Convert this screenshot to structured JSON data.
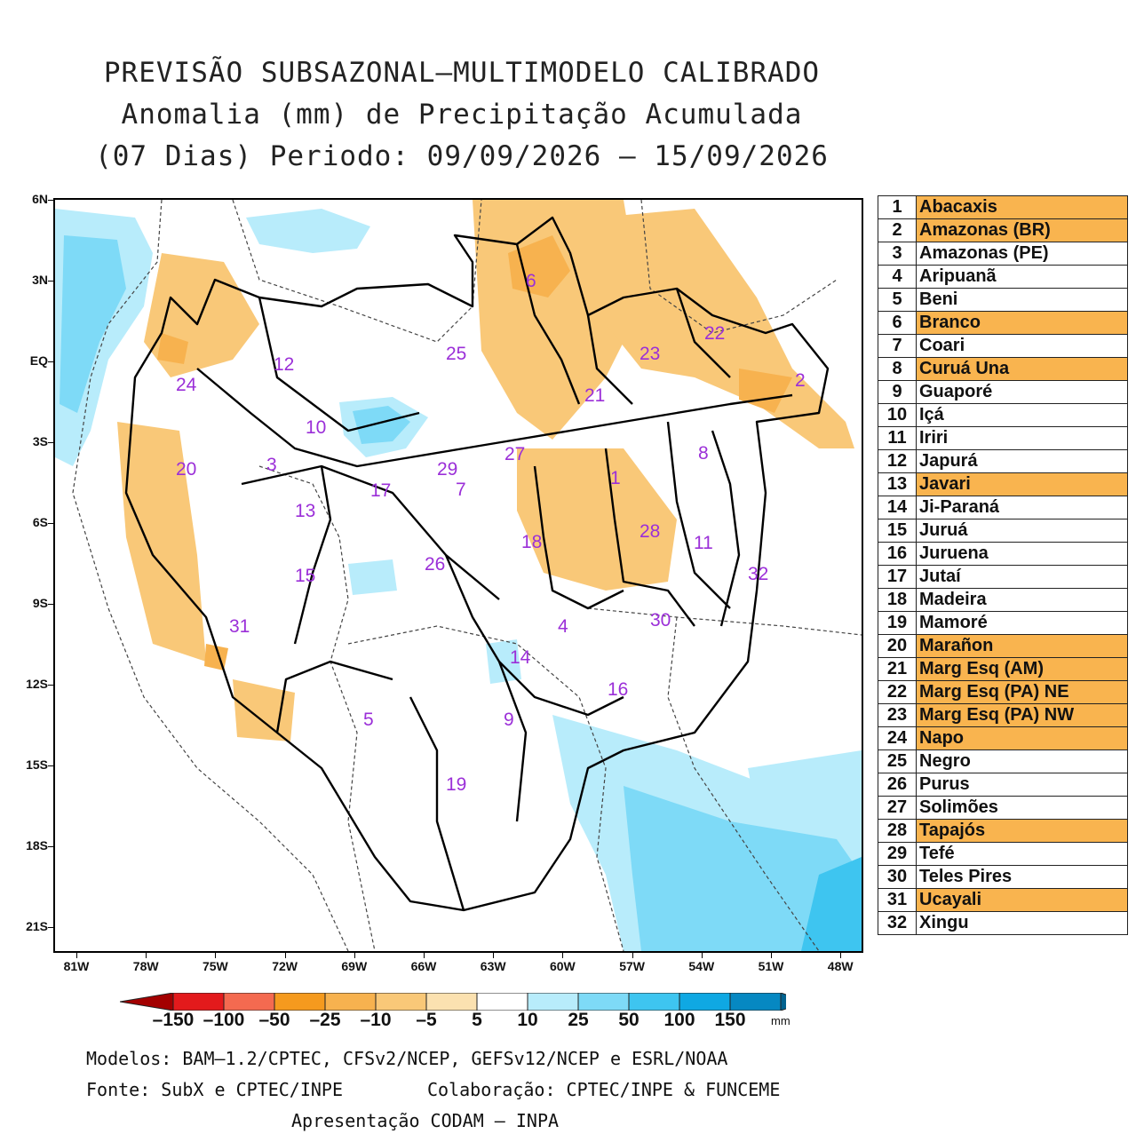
{
  "title": {
    "line1": "PREVISÃO SUBSAZONAL–MULTIMODELO CALIBRADO",
    "line2": "Anomalia (mm) de Precipitação Acumulada",
    "line3": "(07 Dias) Periodo: 09/09/2026 – 15/09/2026"
  },
  "axes": {
    "lat_labels": [
      "6N",
      "3N",
      "EQ",
      "3S",
      "6S",
      "9S",
      "12S",
      "15S",
      "18S",
      "21S"
    ],
    "lon_labels": [
      "81W",
      "78W",
      "75W",
      "72W",
      "69W",
      "66W",
      "63W",
      "60W",
      "57W",
      "54W",
      "51W",
      "48W"
    ]
  },
  "basin_labels": [
    "1",
    "2",
    "3",
    "4",
    "5",
    "6",
    "7",
    "8",
    "9",
    "10",
    "11",
    "12",
    "13",
    "14",
    "15",
    "16",
    "17",
    "18",
    "19",
    "20",
    "21",
    "22",
    "23",
    "24",
    "25",
    "26",
    "27",
    "28",
    "29",
    "30",
    "31",
    "32"
  ],
  "basins": [
    {
      "num": "1",
      "name": "Abacaxis",
      "highlight": true
    },
    {
      "num": "2",
      "name": "Amazonas (BR)",
      "highlight": true
    },
    {
      "num": "3",
      "name": "Amazonas (PE)",
      "highlight": false
    },
    {
      "num": "4",
      "name": "Aripuanã",
      "highlight": false
    },
    {
      "num": "5",
      "name": "Beni",
      "highlight": false
    },
    {
      "num": "6",
      "name": "Branco",
      "highlight": true
    },
    {
      "num": "7",
      "name": "Coari",
      "highlight": false
    },
    {
      "num": "8",
      "name": "Curuá Una",
      "highlight": true
    },
    {
      "num": "9",
      "name": "Guaporé",
      "highlight": false
    },
    {
      "num": "10",
      "name": "Içá",
      "highlight": false
    },
    {
      "num": "11",
      "name": "Iriri",
      "highlight": false
    },
    {
      "num": "12",
      "name": "Japurá",
      "highlight": false
    },
    {
      "num": "13",
      "name": "Javari",
      "highlight": true
    },
    {
      "num": "14",
      "name": "Ji-Paraná",
      "highlight": false
    },
    {
      "num": "15",
      "name": "Juruá",
      "highlight": false
    },
    {
      "num": "16",
      "name": "Juruena",
      "highlight": false
    },
    {
      "num": "17",
      "name": "Jutaí",
      "highlight": false
    },
    {
      "num": "18",
      "name": "Madeira",
      "highlight": false
    },
    {
      "num": "19",
      "name": "Mamoré",
      "highlight": false
    },
    {
      "num": "20",
      "name": "Marañon",
      "highlight": true
    },
    {
      "num": "21",
      "name": "Marg Esq (AM)",
      "highlight": true
    },
    {
      "num": "22",
      "name": "Marg Esq (PA) NE",
      "highlight": true
    },
    {
      "num": "23",
      "name": "Marg Esq (PA) NW",
      "highlight": true
    },
    {
      "num": "24",
      "name": "Napo",
      "highlight": true
    },
    {
      "num": "25",
      "name": "Negro",
      "highlight": false
    },
    {
      "num": "26",
      "name": "Purus",
      "highlight": false
    },
    {
      "num": "27",
      "name": "Solimões",
      "highlight": false
    },
    {
      "num": "28",
      "name": "Tapajós",
      "highlight": true
    },
    {
      "num": "29",
      "name": "Tefé",
      "highlight": false
    },
    {
      "num": "30",
      "name": "Teles Pires",
      "highlight": false
    },
    {
      "num": "31",
      "name": "Ucayali",
      "highlight": true
    },
    {
      "num": "32",
      "name": "Xingu",
      "highlight": false
    }
  ],
  "colorbar": {
    "labels": [
      "–150",
      "–100",
      "–50",
      "–25",
      "–10",
      "–5",
      "5",
      "10",
      "25",
      "50",
      "100",
      "150"
    ],
    "colors": [
      "#a30000",
      "#e31a1c",
      "#f46a50",
      "#f59a1e",
      "#f7b24f",
      "#f9c878",
      "#fbe1b0",
      "#ffffff",
      "#b8ecfb",
      "#7edaf7",
      "#3ec5f0",
      "#0fa8e3",
      "#0688c2",
      "#02628f"
    ],
    "unit": "mm"
  },
  "colors": {
    "dry": "#f9c878",
    "dry_strong": "#f7b24f",
    "wet": "#b8ecfb",
    "wet_strong": "#7edaf7",
    "label": "#9b2fd8",
    "highlight_row": "#f9b44f"
  },
  "footer": {
    "models": "Modelos: BAM–1.2/CPTEC, CFSv2/NCEP, GEFSv12/NCEP e ESRL/NOAA",
    "source": "Fonte: SubX e CPTEC/INPE",
    "collab": "Colaboração: CPTEC/INPE & FUNCEME",
    "presentation": "Apresentação CODAM – INPA"
  }
}
